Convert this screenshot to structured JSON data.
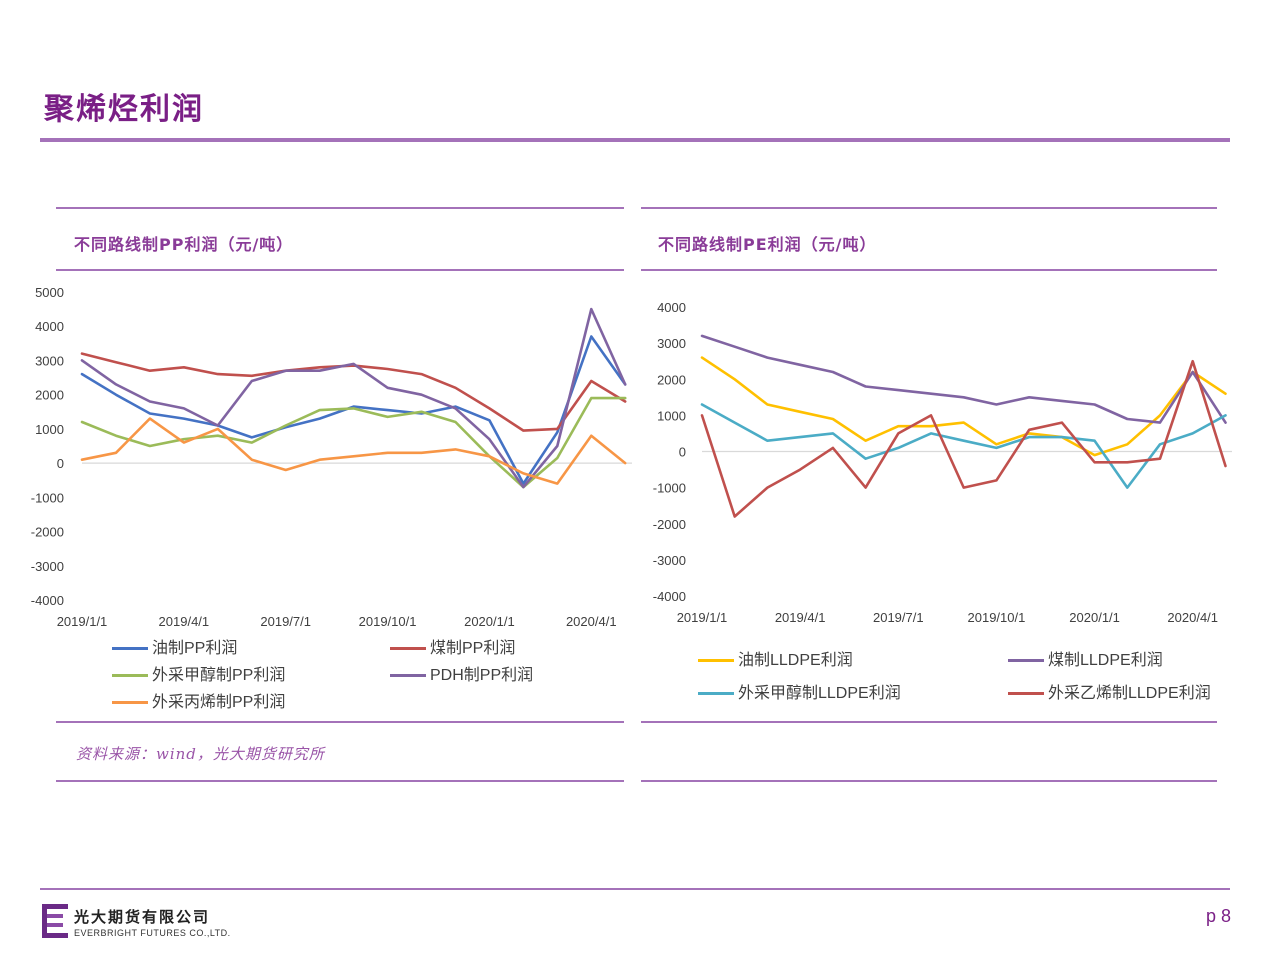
{
  "header": {
    "title": "聚烯烃利润"
  },
  "left_panel": {
    "title": "不同路线制PP利润（元/吨）",
    "source": "资料来源：wind，光大期货研究所"
  },
  "right_panel": {
    "title": "不同路线制PE利润（元/吨）"
  },
  "footer": {
    "company_cn": "光大期货有限公司",
    "company_en": "EVERBRIGHT FUTURES CO.,LTD.",
    "page": "p 8"
  },
  "chart_data": [
    {
      "type": "line",
      "title": "不同路线制PP利润（元/吨）",
      "xlabel": "",
      "ylabel": "",
      "x_ticks": [
        "2019/1/1",
        "2019/4/1",
        "2019/7/1",
        "2019/10/1",
        "2020/1/1",
        "2020/4/1"
      ],
      "x_months": [
        0,
        1,
        2,
        3,
        4,
        5,
        6,
        7,
        8,
        9,
        10,
        11,
        12,
        13,
        14,
        15,
        16
      ],
      "y_ticks": [
        5000,
        4000,
        3000,
        2000,
        1000,
        0,
        -1000,
        -2000,
        -3000,
        -4000
      ],
      "ylim": [
        -4000,
        5000
      ],
      "xlim_months": [
        0,
        16.2
      ],
      "grid": false,
      "legend_position": "bottom",
      "series": [
        {
          "name": "油制PP利润",
          "color": "#4472c4",
          "values": [
            2600,
            2000,
            1450,
            1300,
            1100,
            750,
            1050,
            1300,
            1650,
            1550,
            1450,
            1650,
            1250,
            -600,
            900,
            3700,
            2300
          ]
        },
        {
          "name": "煤制PP利润",
          "color": "#c0504d",
          "values": [
            3200,
            2950,
            2700,
            2800,
            2600,
            2550,
            2700,
            2800,
            2850,
            2750,
            2600,
            2200,
            1600,
            950,
            1000,
            2400,
            1800
          ]
        },
        {
          "name": "外采甲醇制PP利润",
          "color": "#9bbb59",
          "values": [
            1200,
            800,
            500,
            700,
            800,
            600,
            1100,
            1550,
            1600,
            1350,
            1500,
            1200,
            200,
            -700,
            150,
            1900,
            1900
          ]
        },
        {
          "name": "PDH制PP利润",
          "color": "#8064a2",
          "values": [
            3000,
            2300,
            1800,
            1600,
            1100,
            2400,
            2700,
            2700,
            2900,
            2200,
            2000,
            1600,
            700,
            -700,
            500,
            4500,
            2300
          ]
        },
        {
          "name": "外采丙烯制PP利润",
          "color": "#f79646",
          "values": [
            100,
            300,
            1300,
            600,
            1000,
            100,
            -200,
            100,
            200,
            300,
            300,
            400,
            200,
            -300,
            -600,
            800,
            0
          ]
        }
      ]
    },
    {
      "type": "line",
      "title": "不同路线制PE利润（元/吨）",
      "xlabel": "",
      "ylabel": "",
      "x_ticks": [
        "2019/1/1",
        "2019/4/1",
        "2019/7/1",
        "2019/10/1",
        "2020/1/1",
        "2020/4/1"
      ],
      "x_months": [
        0,
        1,
        2,
        3,
        4,
        5,
        6,
        7,
        8,
        9,
        10,
        11,
        12,
        13,
        14,
        15,
        16
      ],
      "y_ticks": [
        4000,
        3000,
        2000,
        1000,
        0,
        -1000,
        -2000,
        -3000,
        -4000
      ],
      "ylim": [
        -4000,
        4000
      ],
      "xlim_months": [
        0,
        16.2
      ],
      "grid": false,
      "legend_position": "bottom",
      "series": [
        {
          "name": "油制LLDPE利润",
          "color": "#ffc000",
          "values": [
            2600,
            2000,
            1300,
            1100,
            900,
            300,
            700,
            700,
            800,
            200,
            500,
            400,
            -100,
            200,
            1000,
            2200,
            1600
          ]
        },
        {
          "name": "煤制LLDPE利润",
          "color": "#8064a2",
          "values": [
            3200,
            2900,
            2600,
            2400,
            2200,
            1800,
            1700,
            1600,
            1500,
            1300,
            1500,
            1400,
            1300,
            900,
            800,
            2200,
            800
          ]
        },
        {
          "name": "外采甲醇制LLDPE利润",
          "color": "#4bacc6",
          "values": [
            1300,
            800,
            300,
            400,
            500,
            -200,
            100,
            500,
            300,
            100,
            400,
            400,
            300,
            -1000,
            200,
            500,
            1000
          ]
        },
        {
          "name": "外采乙烯制LLDPE利润",
          "color": "#c0504d",
          "values": [
            1000,
            -1800,
            -1000,
            -500,
            100,
            -1000,
            500,
            1000,
            -1000,
            -800,
            600,
            800,
            -300,
            -300,
            -200,
            2500,
            -400
          ]
        }
      ]
    }
  ]
}
